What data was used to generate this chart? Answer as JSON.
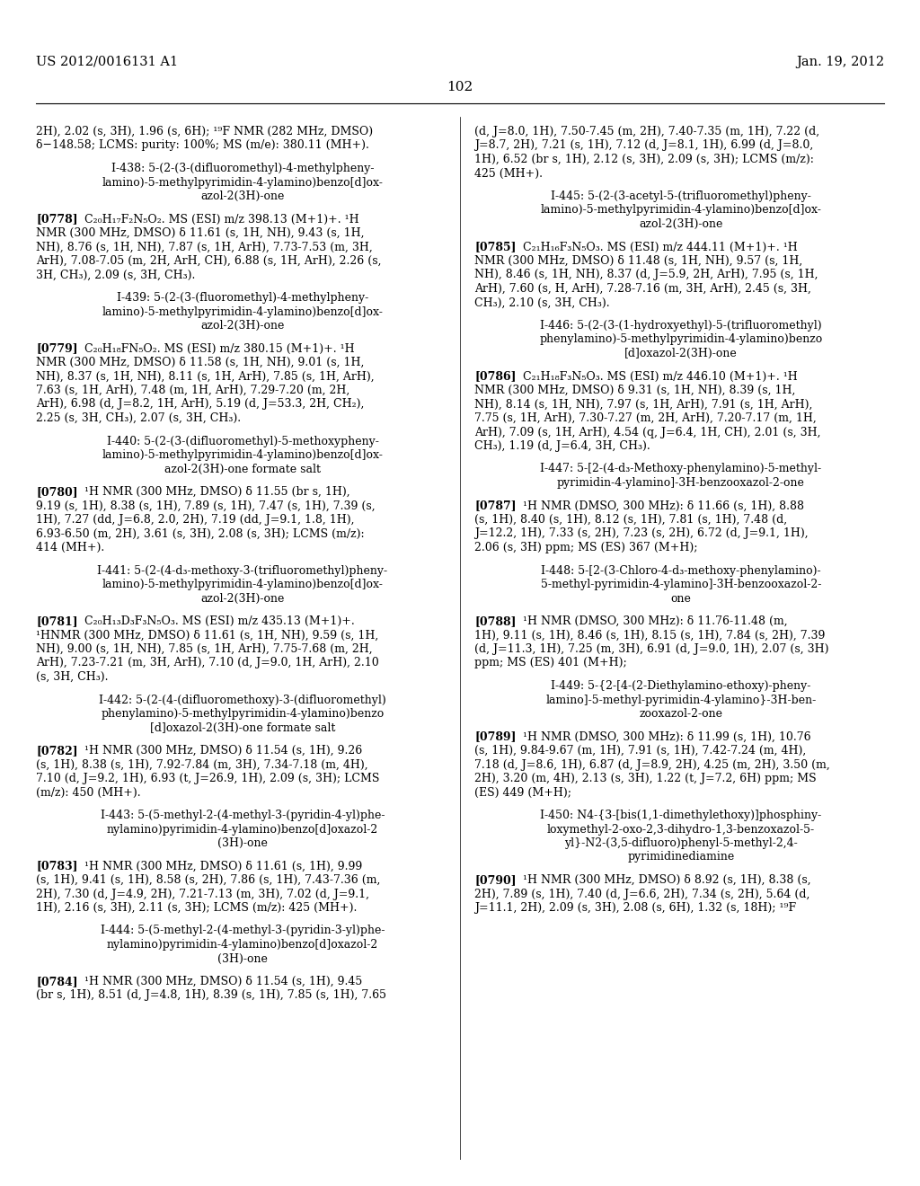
{
  "background_color": "#ffffff",
  "header_left": "US 2012/0016131 A1",
  "header_right": "Jan. 19, 2012",
  "page_number": "102",
  "left_column": [
    {
      "type": "continuation",
      "lines": [
        "2H), 2.02 (s, 3H), 1.96 (s, 6H); ¹⁹F NMR (282 MHz, DMSO)",
        "δ−148.58; LCMS: purity: 100%; MS (m/e): 380.11 (MH+)."
      ]
    },
    {
      "type": "spacer"
    },
    {
      "type": "compound_title",
      "lines": [
        "I-438: 5-(2-(3-(difluoromethyl)-4-methylpheny-",
        "lamino)-5-methylpyrimidin-4-ylamino)benzo[d]ox-",
        "azol-2(3H)-one"
      ]
    },
    {
      "type": "spacer"
    },
    {
      "type": "paragraph",
      "tag": "[0778]",
      "lines": [
        "C₂₀H₁₇F₂N₅O₂. MS (ESI) m/z 398.13 (M+1)+. ¹H",
        "NMR (300 MHz, DMSO) δ 11.61 (s, 1H, NH), 9.43 (s, 1H,",
        "NH), 8.76 (s, 1H, NH), 7.87 (s, 1H, ArH), 7.73-7.53 (m, 3H,",
        "ArH), 7.08-7.05 (m, 2H, ArH, CH), 6.88 (s, 1H, ArH), 2.26 (s,",
        "3H, CH₃), 2.09 (s, 3H, CH₃)."
      ]
    },
    {
      "type": "spacer"
    },
    {
      "type": "compound_title",
      "lines": [
        "I-439: 5-(2-(3-(fluoromethyl)-4-methylpheny-",
        "lamino)-5-methylpyrimidin-4-ylamino)benzo[d]ox-",
        "azol-2(3H)-one"
      ]
    },
    {
      "type": "spacer"
    },
    {
      "type": "paragraph",
      "tag": "[0779]",
      "lines": [
        "C₂₀H₁₈FN₅O₂. MS (ESI) m/z 380.15 (M+1)+. ¹H",
        "NMR (300 MHz, DMSO) δ 11.58 (s, 1H, NH), 9.01 (s, 1H,",
        "NH), 8.37 (s, 1H, NH), 8.11 (s, 1H, ArH), 7.85 (s, 1H, ArH),",
        "7.63 (s, 1H, ArH), 7.48 (m, 1H, ArH), 7.29-7.20 (m, 2H,",
        "ArH), 6.98 (d, J=8.2, 1H, ArH), 5.19 (d, J=53.3, 2H, CH₂),",
        "2.25 (s, 3H, CH₃), 2.07 (s, 3H, CH₃)."
      ]
    },
    {
      "type": "spacer"
    },
    {
      "type": "compound_title",
      "lines": [
        "I-440: 5-(2-(3-(difluoromethyl)-5-methoxypheny-",
        "lamino)-5-methylpyrimidin-4-ylamino)benzo[d]ox-",
        "azol-2(3H)-one formate salt"
      ]
    },
    {
      "type": "spacer"
    },
    {
      "type": "paragraph",
      "tag": "[0780]",
      "lines": [
        "¹H NMR (300 MHz, DMSO) δ 11.55 (br s, 1H),",
        "9.19 (s, 1H), 8.38 (s, 1H), 7.89 (s, 1H), 7.47 (s, 1H), 7.39 (s,",
        "1H), 7.27 (dd, J=6.8, 2.0, 2H), 7.19 (dd, J=9.1, 1.8, 1H),",
        "6.93-6.50 (m, 2H), 3.61 (s, 3H), 2.08 (s, 3H); LCMS (m/z):",
        "414 (MH+)."
      ]
    },
    {
      "type": "spacer"
    },
    {
      "type": "compound_title",
      "lines": [
        "I-441: 5-(2-(4-d₃-methoxy-3-(trifluoromethyl)pheny-",
        "lamino)-5-methylpyrimidin-4-ylamino)benzo[d]ox-",
        "azol-2(3H)-one"
      ]
    },
    {
      "type": "spacer"
    },
    {
      "type": "paragraph",
      "tag": "[0781]",
      "lines": [
        "C₂₀H₁₃D₃F₃N₅O₃. MS (ESI) m/z 435.13 (M+1)+.",
        "¹HNMR (300 MHz, DMSO) δ 11.61 (s, 1H, NH), 9.59 (s, 1H,",
        "NH), 9.00 (s, 1H, NH), 7.85 (s, 1H, ArH), 7.75-7.68 (m, 2H,",
        "ArH), 7.23-7.21 (m, 3H, ArH), 7.10 (d, J=9.0, 1H, ArH), 2.10",
        "(s, 3H, CH₃)."
      ]
    },
    {
      "type": "spacer"
    },
    {
      "type": "compound_title",
      "lines": [
        "I-442: 5-(2-(4-(difluoromethoxy)-3-(difluoromethyl)",
        "phenylamino)-5-methylpyrimidin-4-ylamino)benzo",
        "[d]oxazol-2(3H)-one formate salt"
      ]
    },
    {
      "type": "spacer"
    },
    {
      "type": "paragraph",
      "tag": "[0782]",
      "lines": [
        "¹H NMR (300 MHz, DMSO) δ 11.54 (s, 1H), 9.26",
        "(s, 1H), 8.38 (s, 1H), 7.92-7.84 (m, 3H), 7.34-7.18 (m, 4H),",
        "7.10 (d, J=9.2, 1H), 6.93 (t, J=26.9, 1H), 2.09 (s, 3H); LCMS",
        "(m/z): 450 (MH+)."
      ]
    },
    {
      "type": "spacer"
    },
    {
      "type": "compound_title",
      "lines": [
        "I-443: 5-(5-methyl-2-(4-methyl-3-(pyridin-4-yl)phe-",
        "nylamino)pyrimidin-4-ylamino)benzo[d]oxazol-2",
        "(3H)-one"
      ]
    },
    {
      "type": "spacer"
    },
    {
      "type": "paragraph",
      "tag": "[0783]",
      "lines": [
        "¹H NMR (300 MHz, DMSO) δ 11.61 (s, 1H), 9.99",
        "(s, 1H), 9.41 (s, 1H), 8.58 (s, 2H), 7.86 (s, 1H), 7.43-7.36 (m,",
        "2H), 7.30 (d, J=4.9, 2H), 7.21-7.13 (m, 3H), 7.02 (d, J=9.1,",
        "1H), 2.16 (s, 3H), 2.11 (s, 3H); LCMS (m/z): 425 (MH+)."
      ]
    },
    {
      "type": "spacer"
    },
    {
      "type": "compound_title",
      "lines": [
        "I-444: 5-(5-methyl-2-(4-methyl-3-(pyridin-3-yl)phe-",
        "nylamino)pyrimidin-4-ylamino)benzo[d]oxazol-2",
        "(3H)-one"
      ]
    },
    {
      "type": "spacer"
    },
    {
      "type": "paragraph",
      "tag": "[0784]",
      "lines": [
        "¹H NMR (300 MHz, DMSO) δ 11.54 (s, 1H), 9.45",
        "(br s, 1H), 8.51 (d, J=4.8, 1H), 8.39 (s, 1H), 7.85 (s, 1H), 7.65"
      ]
    }
  ],
  "right_column": [
    {
      "type": "continuation",
      "lines": [
        "(d, J=8.0, 1H), 7.50-7.45 (m, 2H), 7.40-7.35 (m, 1H), 7.22 (d,",
        "J=8.7, 2H), 7.21 (s, 1H), 7.12 (d, J=8.1, 1H), 6.99 (d, J=8.0,",
        "1H), 6.52 (br s, 1H), 2.12 (s, 3H), 2.09 (s, 3H); LCMS (m/z):",
        "425 (MH+)."
      ]
    },
    {
      "type": "spacer"
    },
    {
      "type": "compound_title",
      "lines": [
        "I-445: 5-(2-(3-acetyl-5-(trifluoromethyl)pheny-",
        "lamino)-5-methylpyrimidin-4-ylamino)benzo[d]ox-",
        "azol-2(3H)-one"
      ]
    },
    {
      "type": "spacer"
    },
    {
      "type": "paragraph",
      "tag": "[0785]",
      "lines": [
        "C₂₁H₁₆F₃N₅O₃. MS (ESI) m/z 444.11 (M+1)+. ¹H",
        "NMR (300 MHz, DMSO) δ 11.48 (s, 1H, NH), 9.57 (s, 1H,",
        "NH), 8.46 (s, 1H, NH), 8.37 (d, J=5.9, 2H, ArH), 7.95 (s, 1H,",
        "ArH), 7.60 (s, H, ArH), 7.28-7.16 (m, 3H, ArH), 2.45 (s, 3H,",
        "CH₃), 2.10 (s, 3H, CH₃)."
      ]
    },
    {
      "type": "spacer"
    },
    {
      "type": "compound_title",
      "lines": [
        "I-446: 5-(2-(3-(1-hydroxyethyl)-5-(trifluoromethyl)",
        "phenylamino)-5-methylpyrimidin-4-ylamino)benzo",
        "[d]oxazol-2(3H)-one"
      ]
    },
    {
      "type": "spacer"
    },
    {
      "type": "paragraph",
      "tag": "[0786]",
      "lines": [
        "C₂₁H₁₈F₃N₅O₃. MS (ESI) m/z 446.10 (M+1)+. ¹H",
        "NMR (300 MHz, DMSO) δ 9.31 (s, 1H, NH), 8.39 (s, 1H,",
        "NH), 8.14 (s, 1H, NH), 7.97 (s, 1H, ArH), 7.91 (s, 1H, ArH),",
        "7.75 (s, 1H, ArH), 7.30-7.27 (m, 2H, ArH), 7.20-7.17 (m, 1H,",
        "ArH), 7.09 (s, 1H, ArH), 4.54 (q, J=6.4, 1H, CH), 2.01 (s, 3H,",
        "CH₃), 1.19 (d, J=6.4, 3H, CH₃)."
      ]
    },
    {
      "type": "spacer"
    },
    {
      "type": "compound_title",
      "lines": [
        "I-447: 5-[2-(4-d₃-Methoxy-phenylamino)-5-methyl-",
        "pyrimidin-4-ylamino]-3H-benzooxazol-2-one"
      ]
    },
    {
      "type": "spacer"
    },
    {
      "type": "paragraph",
      "tag": "[0787]",
      "lines": [
        "¹H NMR (DMSO, 300 MHz): δ 11.66 (s, 1H), 8.88",
        "(s, 1H), 8.40 (s, 1H), 8.12 (s, 1H), 7.81 (s, 1H), 7.48 (d,",
        "J=12.2, 1H), 7.33 (s, 2H), 7.23 (s, 2H), 6.72 (d, J=9.1, 1H),",
        "2.06 (s, 3H) ppm; MS (ES) 367 (M+H);"
      ]
    },
    {
      "type": "spacer"
    },
    {
      "type": "compound_title",
      "lines": [
        "I-448: 5-[2-(3-Chloro-4-d₃-methoxy-phenylamino)-",
        "5-methyl-pyrimidin-4-ylamino]-3H-benzooxazol-2-",
        "one"
      ]
    },
    {
      "type": "spacer"
    },
    {
      "type": "paragraph",
      "tag": "[0788]",
      "lines": [
        "¹H NMR (DMSO, 300 MHz): δ 11.76-11.48 (m,",
        "1H), 9.11 (s, 1H), 8.46 (s, 1H), 8.15 (s, 1H), 7.84 (s, 2H), 7.39",
        "(d, J=11.3, 1H), 7.25 (m, 3H), 6.91 (d, J=9.0, 1H), 2.07 (s, 3H)",
        "ppm; MS (ES) 401 (M+H);"
      ]
    },
    {
      "type": "spacer"
    },
    {
      "type": "compound_title",
      "lines": [
        "I-449: 5-{2-[4-(2-Diethylamino-ethoxy)-pheny-",
        "lamino]-5-methyl-pyrimidin-4-ylamino}-3H-ben-",
        "zooxazol-2-one"
      ]
    },
    {
      "type": "spacer"
    },
    {
      "type": "paragraph",
      "tag": "[0789]",
      "lines": [
        "¹H NMR (DMSO, 300 MHz): δ 11.99 (s, 1H), 10.76",
        "(s, 1H), 9.84-9.67 (m, 1H), 7.91 (s, 1H), 7.42-7.24 (m, 4H),",
        "7.18 (d, J=8.6, 1H), 6.87 (d, J=8.9, 2H), 4.25 (m, 2H), 3.50 (m,",
        "2H), 3.20 (m, 4H), 2.13 (s, 3H), 1.22 (t, J=7.2, 6H) ppm; MS",
        "(ES) 449 (M+H);"
      ]
    },
    {
      "type": "spacer"
    },
    {
      "type": "compound_title",
      "lines": [
        "I-450: N4-{3-[bis(1,1-dimethylethoxy)]phosphiny-",
        "loxymethyl-2-oxo-2,3-dihydro-1,3-benzoxazol-5-",
        "yl}-N2-(3,5-difluoro)phenyl-5-methyl-2,4-",
        "pyrimidinediamine"
      ]
    },
    {
      "type": "spacer"
    },
    {
      "type": "paragraph",
      "tag": "[0790]",
      "lines": [
        "¹H NMR (300 MHz, DMSO) δ 8.92 (s, 1H), 8.38 (s,",
        "2H), 7.89 (s, 1H), 7.40 (d, J=6.6, 2H), 7.34 (s, 2H), 5.64 (d,",
        "J=11.1, 2H), 2.09 (s, 3H), 2.08 (s, 6H), 1.32 (s, 18H); ¹⁹F"
      ]
    }
  ]
}
